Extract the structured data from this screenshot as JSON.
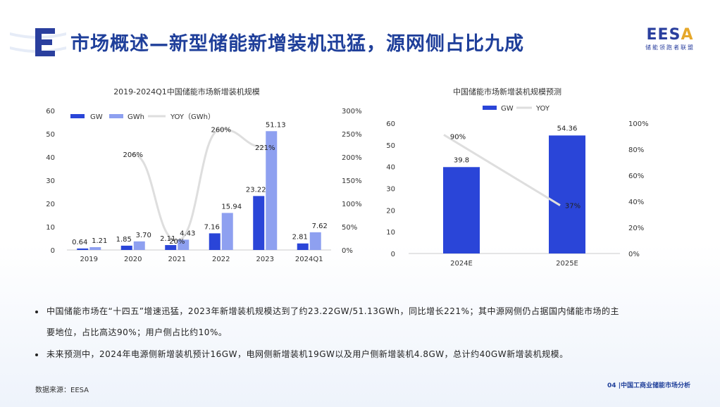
{
  "title": "市场概述—新型储能新增装机迅猛，源网侧占比九成",
  "brand": {
    "mark": "EESA",
    "subtitle": "储能领跑者联盟"
  },
  "chart_data": [
    {
      "type": "bar",
      "title": "2019-2024Q1中国储能市场新增装机规模",
      "categories": [
        "2019",
        "2020",
        "2021",
        "2022",
        "2023",
        "2024Q1"
      ],
      "series": [
        {
          "name": "GW",
          "values": [
            0.64,
            1.85,
            2.11,
            7.16,
            23.22,
            2.81
          ],
          "labels": [
            "0.64",
            "1.85",
            "2.11",
            "7.16",
            "23.22",
            "2.81"
          ],
          "color": "#2a45d8"
        },
        {
          "name": "GWh",
          "values": [
            1.21,
            3.7,
            4.43,
            15.94,
            51.13,
            7.62
          ],
          "labels": [
            "1.21",
            "3.70",
            "4.43",
            "15.94",
            "51.13",
            "7.62"
          ],
          "color": "#8ea0f0"
        },
        {
          "name": "YOY（GWh）",
          "type": "line",
          "axis": "right",
          "points": [
            [
              "2020",
              206
            ],
            [
              "2021",
              20
            ],
            [
              "2022",
              260
            ],
            [
              "2023",
              221
            ]
          ],
          "labels": [
            "206%",
            "20%",
            "260%",
            "221%"
          ],
          "color": "#dedede"
        }
      ],
      "ylim": [
        0,
        60
      ],
      "yticks": [
        "0",
        "10",
        "20",
        "30",
        "40",
        "50",
        "60"
      ],
      "y2lim": [
        0,
        300
      ],
      "y2ticks": [
        "0%",
        "50%",
        "100%",
        "150%",
        "200%",
        "250%",
        "300%"
      ]
    },
    {
      "type": "bar",
      "title": "中国储能市场新增装机规模预测",
      "categories": [
        "2024E",
        "2025E"
      ],
      "series": [
        {
          "name": "GW",
          "values": [
            39.8,
            54.36
          ],
          "labels": [
            "39.8",
            "54.36"
          ],
          "color": "#2a45d8"
        },
        {
          "name": "YOY",
          "type": "line",
          "axis": "right",
          "values": [
            90,
            37
          ],
          "labels": [
            "90%",
            "37%"
          ],
          "color": "#dedede"
        }
      ],
      "ylim": [
        0,
        60
      ],
      "yticks": [
        "0",
        "10",
        "20",
        "30",
        "40",
        "50",
        "60"
      ],
      "y2lim": [
        0,
        100
      ],
      "y2ticks": [
        "0%",
        "20%",
        "40%",
        "60%",
        "80%",
        "100%"
      ]
    }
  ],
  "notes": [
    "中国储能市场在“十四五”增速迅猛，2023年新增装机规模达到了约23.22GW/51.13GWh，同比增长221%；其中源网侧仍占据国内储能市场的主",
    "要地位，占比高达90%；用户侧占比约10%。",
    "未来预测中，2024年电源侧新增装机预计16GW，电网侧新增装机19GW以及用户侧新增装机4.8GW，总计约40GW新增装机规模。"
  ],
  "source": "数据来源：EESA",
  "page": "04 |中国工商业储能市场分析"
}
